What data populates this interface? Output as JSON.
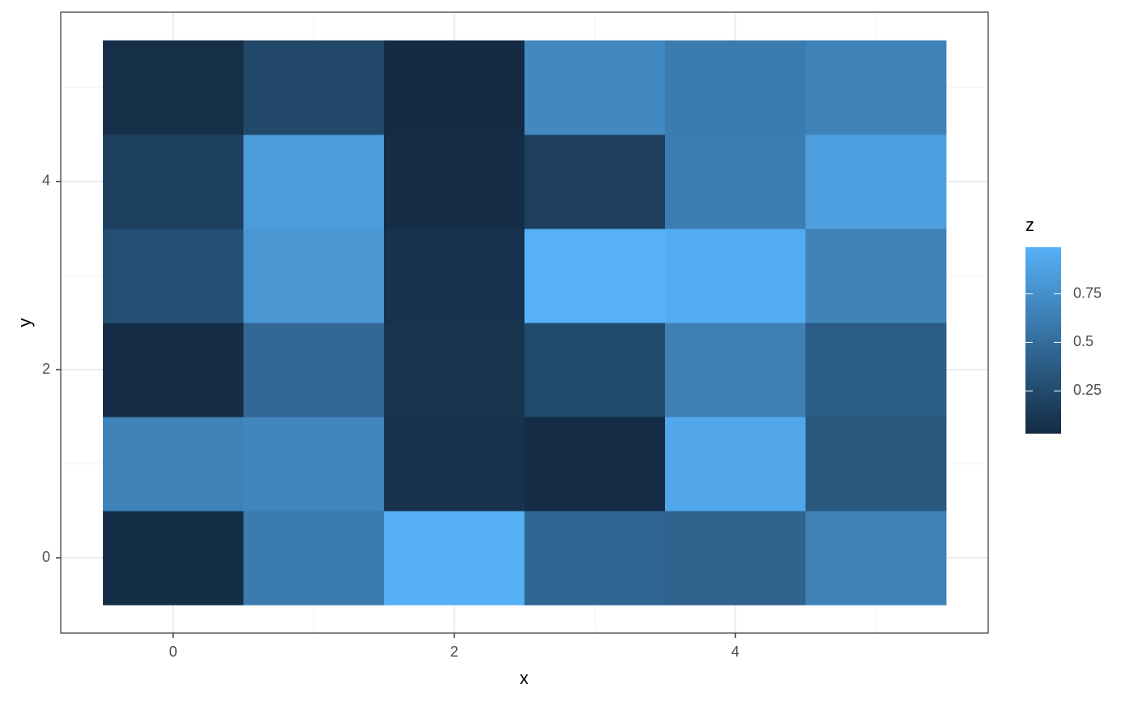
{
  "chart_data": {
    "type": "heatmap",
    "x_label": "x",
    "y_label": "y",
    "legend_title": "z",
    "x": [
      0,
      1,
      2,
      3,
      4,
      5
    ],
    "y": [
      0,
      1,
      2,
      3,
      4,
      5
    ],
    "z": [
      [
        0.05,
        0.6,
        0.98,
        0.45,
        0.43,
        0.65
      ],
      [
        0.65,
        0.68,
        0.08,
        0.04,
        0.92,
        0.35
      ],
      [
        0.04,
        0.47,
        0.1,
        0.25,
        0.64,
        0.38
      ],
      [
        0.28,
        0.8,
        0.08,
        0.99,
        0.95,
        0.66
      ],
      [
        0.18,
        0.84,
        0.04,
        0.17,
        0.62,
        0.86
      ],
      [
        0.06,
        0.24,
        0.03,
        0.7,
        0.6,
        0.66
      ]
    ],
    "low_color": "#132B43",
    "high_color": "#56B1F7",
    "xlim": [
      -0.8,
      5.8
    ],
    "ylim": [
      -0.8,
      5.8
    ],
    "xticks": [
      0,
      2,
      4
    ],
    "yticks": [
      0,
      2,
      4
    ],
    "xminor": [
      1,
      3,
      5
    ],
    "yminor": [
      1,
      3,
      5
    ],
    "legend_ticks": [
      0.25,
      0.5,
      0.75
    ],
    "grid": true
  }
}
